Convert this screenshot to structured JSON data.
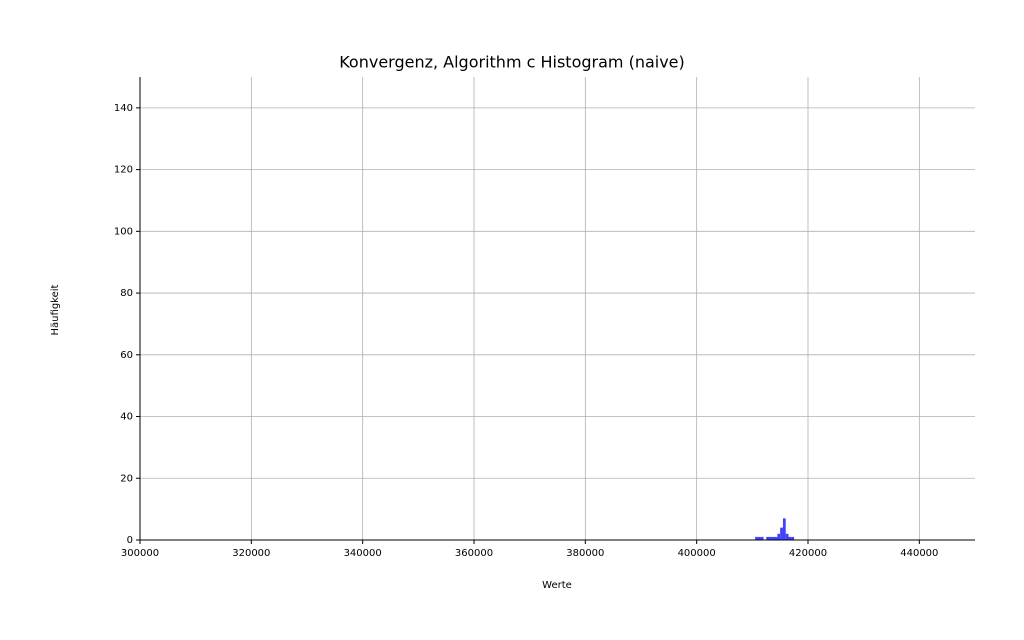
{
  "chart_data": {
    "type": "histogram",
    "title": "Konvergenz, Algorithm c Histogram (naive)",
    "x_label": "Werte",
    "y_label": "Häufigkeit",
    "bins": [
      410500,
      411000,
      411500,
      412000,
      412500,
      413000,
      413500,
      414000,
      414500,
      415000,
      415500,
      416000,
      416500,
      417000,
      417500
    ],
    "values": [
      1,
      1,
      1,
      0,
      1,
      1,
      1,
      1,
      2,
      4,
      7,
      2,
      1,
      1
    ],
    "color": "#0000ff",
    "xlim": [
      300000,
      450000
    ],
    "xticks": [
      300000,
      320000,
      340000,
      360000,
      380000,
      400000,
      420000,
      440000
    ],
    "ylim": [
      0,
      150
    ],
    "yticks": [
      0,
      20,
      40,
      60,
      80,
      100,
      120,
      140
    ],
    "grid": true
  }
}
